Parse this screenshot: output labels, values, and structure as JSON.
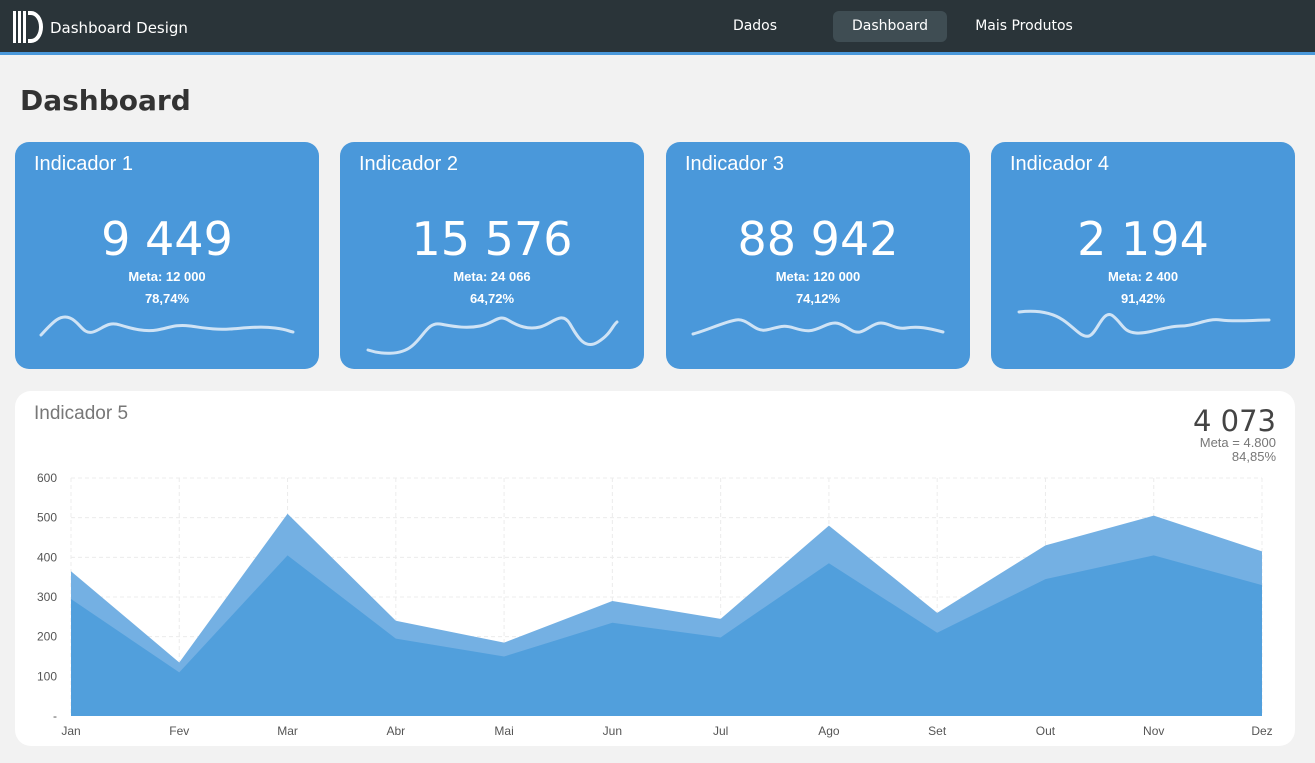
{
  "header": {
    "brand": "Dashboard Design",
    "nav": [
      {
        "label": "Dados",
        "active": false
      },
      {
        "label": "Dashboard",
        "active": true
      },
      {
        "label": "Mais Produtos",
        "active": false
      }
    ]
  },
  "page_title": "Dashboard",
  "cards": [
    {
      "title": "Indicador 1",
      "value": "9 449",
      "meta": "Meta: 12 000",
      "pct": "78,74%"
    },
    {
      "title": "Indicador 2",
      "value": "15 576",
      "meta": "Meta: 24 066",
      "pct": "64,72%"
    },
    {
      "title": "Indicador 3",
      "value": "88 942",
      "meta": "Meta: 120 000",
      "pct": "74,12%"
    },
    {
      "title": "Indicador 4",
      "value": "2 194",
      "meta": "Meta: 2 400",
      "pct": "91,42%"
    }
  ],
  "panel": {
    "title": "Indicador 5",
    "value": "4 073",
    "meta": "Meta = 4.800",
    "pct": "84,85%"
  },
  "colors": {
    "header_bg": "#2a3439",
    "accent": "#4a98da",
    "area_light": "#74b0e3",
    "area_dark": "#519fdc"
  },
  "chart_data": {
    "type": "area",
    "categories": [
      "Jan",
      "Fev",
      "Mar",
      "Abr",
      "Mai",
      "Jun",
      "Jul",
      "Ago",
      "Set",
      "Out",
      "Nov",
      "Dez"
    ],
    "series": [
      {
        "values": [
          365,
          135,
          510,
          240,
          185,
          290,
          245,
          480,
          260,
          430,
          505,
          415
        ]
      },
      {
        "values": [
          295,
          110,
          405,
          195,
          150,
          235,
          198,
          385,
          210,
          345,
          405,
          330
        ]
      }
    ],
    "y_ticks": [
      "-",
      "100",
      "200",
      "300",
      "400",
      "500",
      "600"
    ],
    "ylim": [
      0,
      600
    ],
    "grid": true
  }
}
